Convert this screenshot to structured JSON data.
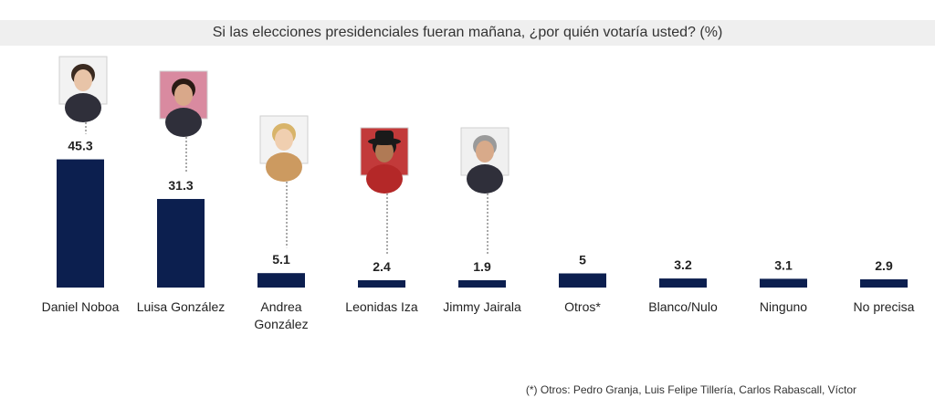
{
  "chart_data": {
    "type": "bar",
    "title": "Si las elecciones presidenciales fueran mañana, ¿por quién votaría usted? (%)",
    "categories": [
      "Daniel Noboa",
      "Luisa González",
      "Andrea González",
      "Leonidas Iza",
      "Jimmy Jairala",
      "Otros*",
      "Blanco/Nulo",
      "Ninguno",
      "No precisa"
    ],
    "category_lines": [
      [
        "Daniel Noboa"
      ],
      [
        "Luisa González"
      ],
      [
        "Andrea",
        "González"
      ],
      [
        "Leonidas Iza"
      ],
      [
        "Jimmy Jairala"
      ],
      [
        "Otros*"
      ],
      [
        "Blanco/Nulo"
      ],
      [
        "Ninguno"
      ],
      [
        "No precisa"
      ]
    ],
    "values": [
      45.3,
      31.3,
      5.1,
      2.4,
      1.9,
      5,
      3.2,
      3.1,
      2.9
    ],
    "value_labels": [
      "45.3",
      "31.3",
      "5.1",
      "2.4",
      "1.9",
      "5",
      "3.2",
      "3.1",
      "2.9"
    ],
    "photos": [
      "Daniel Noboa",
      "Luisa González",
      "Andrea González",
      "Leonidas Iza",
      "Jimmy Jairala"
    ],
    "ylim": [
      0,
      50
    ],
    "grid": false,
    "bar_color": "#0c1f4f",
    "footnote": "(*) Otros: Pedro Granja, Luis Felipe Tillería, Carlos Rabascall, Víctor"
  }
}
